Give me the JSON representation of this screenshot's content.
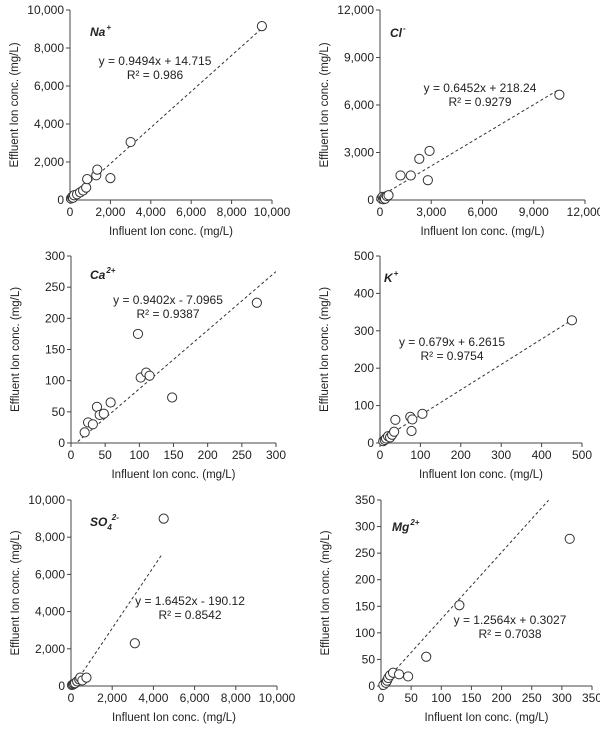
{
  "chart_data": [
    {
      "type": "scatter",
      "ion": "Na",
      "ion_charge": "+",
      "xlabel": "Influent Ion conc.  (mg/L)",
      "ylabel": "Effluent Ion conc.  (mg/L)",
      "xlim": [
        0,
        10000
      ],
      "ylim": [
        0,
        10000
      ],
      "xticks": [
        0,
        2000,
        4000,
        6000,
        8000,
        10000
      ],
      "yticks": [
        0,
        2000,
        4000,
        6000,
        8000,
        10000
      ],
      "xtick_labels": [
        "0",
        "2,000",
        "4,000",
        "6,000",
        "8,000",
        "10,000"
      ],
      "ytick_labels": [
        "0",
        "2,000",
        "4,000",
        "6,000",
        "8,000",
        "10,000"
      ],
      "equation": "y = 0.9494x + 14.715",
      "r2": "R² = 0.986",
      "fit": {
        "slope": 0.9494,
        "intercept": 14.715,
        "x_range": [
          0,
          9500
        ]
      },
      "points": [
        [
          50,
          80
        ],
        [
          100,
          150
        ],
        [
          150,
          120
        ],
        [
          200,
          250
        ],
        [
          350,
          300
        ],
        [
          500,
          400
        ],
        [
          650,
          500
        ],
        [
          800,
          650
        ],
        [
          850,
          1100
        ],
        [
          1300,
          1300
        ],
        [
          1350,
          1600
        ],
        [
          2000,
          1150
        ],
        [
          3000,
          3050
        ],
        [
          9500,
          9150
        ]
      ]
    },
    {
      "type": "scatter",
      "ion": "Cl",
      "ion_charge": "-",
      "xlabel": "Influent Ion conc.  (mg/L)",
      "ylabel": "Effluent Ion conc.  (mg/L)",
      "xlim": [
        0,
        12000
      ],
      "ylim": [
        0,
        12000
      ],
      "xticks": [
        0,
        3000,
        6000,
        9000,
        12000
      ],
      "yticks": [
        0,
        3000,
        6000,
        9000,
        12000
      ],
      "xtick_labels": [
        "0",
        "3,000",
        "6,000",
        "9,000",
        "12,000"
      ],
      "ytick_labels": [
        "0",
        "3,000",
        "6,000",
        "9,000",
        "12,000"
      ],
      "equation": "y = 0.6452x + 218.24",
      "r2": "R² = 0.9279",
      "fit": {
        "slope": 0.6452,
        "intercept": 218.24,
        "x_range": [
          0,
          10500
        ]
      },
      "points": [
        [
          80,
          100
        ],
        [
          150,
          200
        ],
        [
          200,
          50
        ],
        [
          250,
          150
        ],
        [
          300,
          80
        ],
        [
          400,
          250
        ],
        [
          500,
          300
        ],
        [
          1200,
          1550
        ],
        [
          1800,
          1550
        ],
        [
          2300,
          2600
        ],
        [
          2800,
          1250
        ],
        [
          2900,
          3100
        ],
        [
          10500,
          6650
        ]
      ]
    },
    {
      "type": "scatter",
      "ion": "Ca",
      "ion_charge": "2+",
      "xlabel": "Influent Ion conc.  (mg/L)",
      "ylabel": "Effluent Ion conc.  (mg/L)",
      "xlim": [
        0,
        300
      ],
      "ylim": [
        0,
        300
      ],
      "xticks": [
        0,
        50,
        100,
        150,
        200,
        250,
        300
      ],
      "yticks": [
        0,
        50,
        100,
        150,
        200,
        250,
        300
      ],
      "xtick_labels": [
        "0",
        "50",
        "100",
        "150",
        "200",
        "250",
        "300"
      ],
      "ytick_labels": [
        "0",
        "50",
        "100",
        "150",
        "200",
        "250",
        "300"
      ],
      "equation": "y = 0.9402x - 7.0965",
      "r2": "R² = 0.9387",
      "fit": {
        "slope": 0.9402,
        "intercept": -7.0965,
        "x_range": [
          10,
          300
        ]
      },
      "points": [
        [
          20,
          17
        ],
        [
          25,
          33
        ],
        [
          32,
          30
        ],
        [
          38,
          58
        ],
        [
          42,
          45
        ],
        [
          48,
          47
        ],
        [
          58,
          65
        ],
        [
          98,
          175
        ],
        [
          102,
          105
        ],
        [
          110,
          113
        ],
        [
          115,
          108
        ],
        [
          148,
          73
        ],
        [
          272,
          225
        ]
      ]
    },
    {
      "type": "scatter",
      "ion": "K",
      "ion_charge": "+",
      "xlabel": "Influent Ion conc.  (mg/L)",
      "ylabel": "Effluent Ion conc.  (mg/L)",
      "xlim": [
        0,
        500
      ],
      "ylim": [
        0,
        500
      ],
      "xticks": [
        0,
        100,
        200,
        300,
        400,
        500
      ],
      "yticks": [
        0,
        100,
        200,
        300,
        400,
        500
      ],
      "xtick_labels": [
        "0",
        "100",
        "200",
        "300",
        "400",
        "500"
      ],
      "ytick_labels": [
        "0",
        "100",
        "200",
        "300",
        "400",
        "500"
      ],
      "equation": "y = 0.679x + 6.2615",
      "r2": "R² = 0.9754",
      "fit": {
        "slope": 0.679,
        "intercept": 6.2615,
        "x_range": [
          0,
          480
        ]
      },
      "points": [
        [
          8,
          5
        ],
        [
          12,
          8
        ],
        [
          15,
          12
        ],
        [
          20,
          18
        ],
        [
          25,
          15
        ],
        [
          30,
          22
        ],
        [
          35,
          30
        ],
        [
          38,
          62
        ],
        [
          75,
          70
        ],
        [
          78,
          32
        ],
        [
          80,
          63
        ],
        [
          105,
          78
        ],
        [
          475,
          328
        ]
      ]
    },
    {
      "type": "scatter",
      "ion": "SO",
      "ion_subscript": "4",
      "ion_charge": "2-",
      "xlabel": "Influent Ion conc.  (mg/L)",
      "ylabel": "Effluent Ion conc.  (mg/L)",
      "xlim": [
        0,
        10000
      ],
      "ylim": [
        0,
        10000
      ],
      "xticks": [
        0,
        2000,
        4000,
        6000,
        8000,
        10000
      ],
      "yticks": [
        0,
        2000,
        4000,
        6000,
        8000,
        10000
      ],
      "xtick_labels": [
        "0",
        "2,000",
        "4,000",
        "6,000",
        "8,000",
        "10,000"
      ],
      "ytick_labels": [
        "0",
        "2,000",
        "4,000",
        "6,000",
        "8,000",
        "10,000"
      ],
      "equation": "y = 1.6452x - 190.12",
      "r2": "R² = 0.8542",
      "fit": {
        "slope": 1.6452,
        "intercept": -190.12,
        "x_range": [
          120,
          4400
        ]
      },
      "points": [
        [
          50,
          50
        ],
        [
          100,
          80
        ],
        [
          150,
          120
        ],
        [
          200,
          150
        ],
        [
          300,
          250
        ],
        [
          400,
          350
        ],
        [
          450,
          450
        ],
        [
          550,
          300
        ],
        [
          750,
          450
        ],
        [
          3100,
          2300
        ],
        [
          4500,
          9000
        ]
      ]
    },
    {
      "type": "scatter",
      "ion": "Mg",
      "ion_charge": "2+",
      "xlabel": "Influent Ion conc.  (mg/L)",
      "ylabel": "Effluent Ion conc.  (mg/L)",
      "xlim": [
        0,
        350
      ],
      "ylim": [
        0,
        350
      ],
      "xticks": [
        0,
        50,
        100,
        150,
        200,
        250,
        300,
        350
      ],
      "yticks": [
        0,
        50,
        100,
        150,
        200,
        250,
        300,
        350
      ],
      "xtick_labels": [
        "0",
        "50",
        "100",
        "150",
        "200",
        "250",
        "300",
        "350"
      ],
      "ytick_labels": [
        "0",
        "50",
        "100",
        "150",
        "200",
        "250",
        "300",
        "350"
      ],
      "equation": "y = 1.2564x + 0.3027",
      "r2": "R² = 0.7038",
      "fit": {
        "slope": 1.2564,
        "intercept": 0.3027,
        "x_range": [
          0,
          278
        ]
      },
      "points": [
        [
          4,
          2
        ],
        [
          8,
          6
        ],
        [
          10,
          10
        ],
        [
          12,
          15
        ],
        [
          15,
          20
        ],
        [
          20,
          25
        ],
        [
          30,
          22
        ],
        [
          45,
          18
        ],
        [
          75,
          55
        ],
        [
          130,
          152
        ],
        [
          313,
          277
        ]
      ]
    }
  ]
}
